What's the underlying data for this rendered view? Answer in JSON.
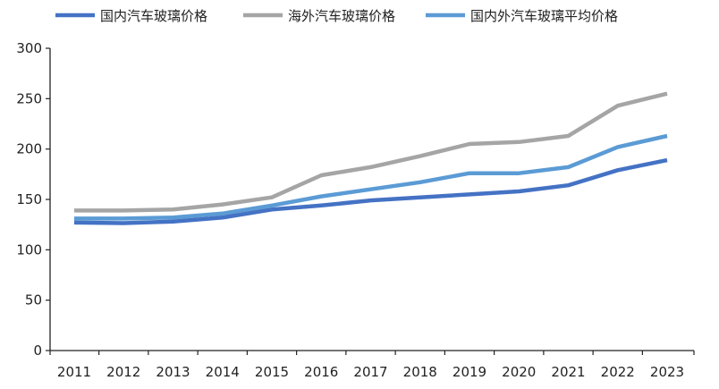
{
  "chart_data": {
    "type": "line",
    "title": "",
    "xlabel": "",
    "ylabel": "",
    "categories": [
      "2011",
      "2012",
      "2013",
      "2014",
      "2015",
      "2016",
      "2017",
      "2018",
      "2019",
      "2020",
      "2021",
      "2022",
      "2023"
    ],
    "ylim": [
      0,
      300
    ],
    "yticks": [
      0,
      50,
      100,
      150,
      200,
      250,
      300
    ],
    "grid": false,
    "legend_position": "top",
    "series": [
      {
        "name": "国内汽车玻璃价格",
        "color": "#4472C4",
        "values": [
          127,
          126.5,
          128,
          132,
          140,
          144,
          149,
          152,
          155,
          158,
          164,
          179,
          189
        ]
      },
      {
        "name": "海外汽车玻璃价格",
        "color": "#A5A5A5",
        "values": [
          139,
          139,
          140,
          145,
          152,
          174,
          182,
          193,
          205,
          207,
          213,
          243,
          255
        ]
      },
      {
        "name": "国内外汽车玻璃平均价格",
        "color": "#5B9BD5",
        "values": [
          131,
          131,
          132,
          136,
          144,
          153,
          160,
          167,
          176,
          176,
          182,
          202,
          213
        ]
      }
    ]
  }
}
